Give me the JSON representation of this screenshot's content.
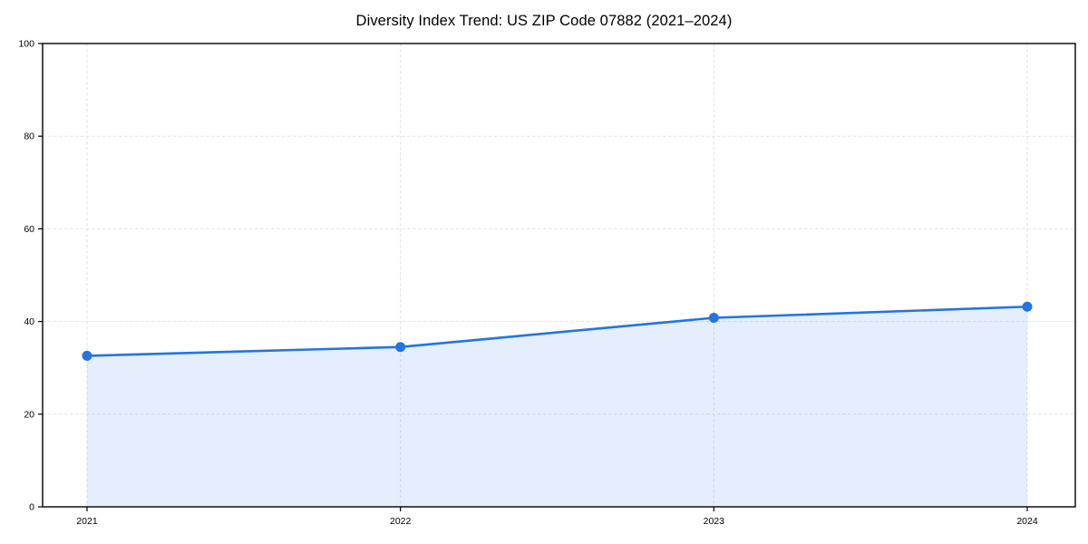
{
  "chart_data": {
    "type": "area",
    "title": "Diversity Index Trend: US ZIP Code 07882 (2021–2024)",
    "categories": [
      "2021",
      "2022",
      "2023",
      "2024"
    ],
    "series": [
      {
        "name": "Diversity Index",
        "values": [
          32.6,
          34.5,
          40.8,
          43.2
        ]
      }
    ],
    "xlabel": "",
    "ylabel": "",
    "ylim": [
      0,
      100
    ],
    "yticks": [
      0,
      20,
      40,
      60,
      80,
      100
    ],
    "grid": true,
    "grid_style": "dashed",
    "legend_position": "none",
    "colors": {
      "line": "#2374e4",
      "fill": "rgba(35, 116, 228, 0.12)",
      "grid": "#e2e2e6",
      "axis": "#000000",
      "tick_label": "#000000",
      "title": "#000000",
      "background": "#ffffff"
    },
    "marker": "circle"
  }
}
